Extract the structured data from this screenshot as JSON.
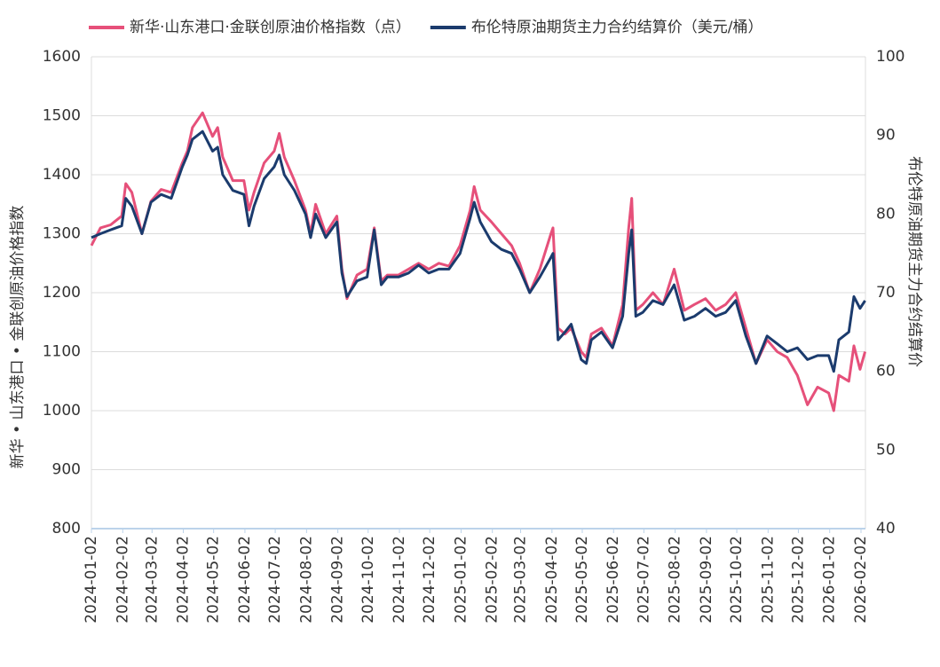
{
  "chart_data": {
    "type": "line",
    "x": [
      "2024-01-02",
      "2024-01-11",
      "2024-01-21",
      "2024-02-01",
      "2024-02-05",
      "2024-02-11",
      "2024-02-21",
      "2024-03-01",
      "2024-03-11",
      "2024-03-21",
      "2024-04-01",
      "2024-04-06",
      "2024-04-11",
      "2024-04-21",
      "2024-05-01",
      "2024-05-06",
      "2024-05-11",
      "2024-05-21",
      "2024-06-01",
      "2024-06-06",
      "2024-06-11",
      "2024-06-21",
      "2024-07-01",
      "2024-07-06",
      "2024-07-11",
      "2024-07-21",
      "2024-08-01",
      "2024-08-06",
      "2024-08-11",
      "2024-08-21",
      "2024-09-01",
      "2024-09-06",
      "2024-09-11",
      "2024-09-21",
      "2024-10-01",
      "2024-10-08",
      "2024-10-15",
      "2024-10-21",
      "2024-11-01",
      "2024-11-11",
      "2024-11-21",
      "2024-12-01",
      "2024-12-11",
      "2024-12-21",
      "2025-01-01",
      "2025-01-11",
      "2025-01-15",
      "2025-01-21",
      "2025-02-01",
      "2025-02-11",
      "2025-02-21",
      "2025-03-01",
      "2025-03-11",
      "2025-03-21",
      "2025-04-01",
      "2025-04-03",
      "2025-04-08",
      "2025-04-15",
      "2025-04-21",
      "2025-05-01",
      "2025-05-06",
      "2025-05-11",
      "2025-05-21",
      "2025-06-01",
      "2025-06-11",
      "2025-06-17",
      "2025-06-20",
      "2025-06-24",
      "2025-07-01",
      "2025-07-11",
      "2025-07-21",
      "2025-08-01",
      "2025-08-11",
      "2025-08-21",
      "2025-09-01",
      "2025-09-11",
      "2025-09-21",
      "2025-10-01",
      "2025-10-11",
      "2025-10-21",
      "2025-11-01",
      "2025-11-11",
      "2025-11-21",
      "2025-12-01",
      "2025-12-11",
      "2025-12-21",
      "2026-01-01",
      "2026-01-06",
      "2026-01-11",
      "2026-01-21",
      "2026-01-26",
      "2026-02-01",
      "2026-02-06"
    ],
    "series": [
      {
        "name": "新华·山东港口·金联创原油价格指数（点）",
        "color": "#e6507a",
        "values": [
          1280,
          1310,
          1315,
          1330,
          1385,
          1370,
          1300,
          1355,
          1375,
          1370,
          1420,
          1440,
          1480,
          1505,
          1465,
          1480,
          1430,
          1390,
          1390,
          1340,
          1370,
          1420,
          1440,
          1470,
          1430,
          1390,
          1340,
          1300,
          1350,
          1300,
          1330,
          1240,
          1190,
          1230,
          1240,
          1310,
          1220,
          1230,
          1230,
          1240,
          1250,
          1240,
          1250,
          1245,
          1280,
          1340,
          1380,
          1340,
          1320,
          1300,
          1280,
          1250,
          1200,
          1240,
          1300,
          1310,
          1140,
          1130,
          1140,
          1100,
          1090,
          1130,
          1140,
          1110,
          1180,
          1310,
          1360,
          1170,
          1180,
          1200,
          1180,
          1240,
          1170,
          1180,
          1190,
          1170,
          1180,
          1200,
          1140,
          1080,
          1120,
          1100,
          1090,
          1060,
          1010,
          1040,
          1030,
          1000,
          1060,
          1050,
          1110,
          1070,
          1100
        ]
      },
      {
        "name": "布伦特原油期货主力合约结算价（美元/桶）",
        "color": "#1b3b6d",
        "axis": "y2",
        "values": [
          77,
          77.5,
          78,
          78.5,
          82,
          81,
          77.5,
          81.5,
          82.5,
          82,
          86,
          87.5,
          89.5,
          90.5,
          88,
          88.5,
          85,
          83,
          82.5,
          78.5,
          81,
          84.5,
          86,
          87.5,
          85,
          83,
          80,
          77,
          80,
          77,
          79,
          72.5,
          69.5,
          71.5,
          72,
          78,
          71,
          72,
          72,
          72.5,
          73.5,
          72.5,
          73,
          73,
          75,
          79.5,
          81.5,
          79,
          76.5,
          75.5,
          75,
          73,
          70,
          72,
          74.5,
          75,
          64,
          65,
          66,
          61.5,
          61,
          64,
          65,
          63,
          67,
          75,
          78,
          67,
          67.5,
          69,
          68.5,
          71,
          66.5,
          67,
          68,
          67,
          67.5,
          69,
          64.5,
          61,
          64.5,
          63.5,
          62.5,
          63,
          61.5,
          62,
          62,
          60,
          64,
          65,
          69.5,
          68,
          69
        ]
      }
    ],
    "xticks": [
      "2024-01-02",
      "2024-02-02",
      "2024-03-02",
      "2024-04-02",
      "2024-05-02",
      "2024-06-02",
      "2024-07-02",
      "2024-08-02",
      "2024-09-02",
      "2024-10-02",
      "2024-11-02",
      "2024-12-02",
      "2025-01-02",
      "2025-02-02",
      "2025-03-02",
      "2025-04-02",
      "2025-05-02",
      "2025-06-02",
      "2025-07-02",
      "2025-08-02",
      "2025-09-02",
      "2025-10-02",
      "2025-11-02",
      "2025-12-02",
      "2026-01-02",
      "2026-02-02"
    ],
    "y_label": "新华 • 山东港口 • 金联创原油价格指数",
    "y2_label": "布伦特原油期货主力合约结算价",
    "ylim": [
      800,
      1600
    ],
    "yticks": [
      800,
      900,
      1000,
      1100,
      1200,
      1300,
      1400,
      1500,
      1600
    ],
    "y2lim": [
      40,
      100
    ],
    "y2ticks": [
      40,
      50,
      60,
      70,
      80,
      90,
      100
    ],
    "grid": true,
    "legend": "top"
  }
}
